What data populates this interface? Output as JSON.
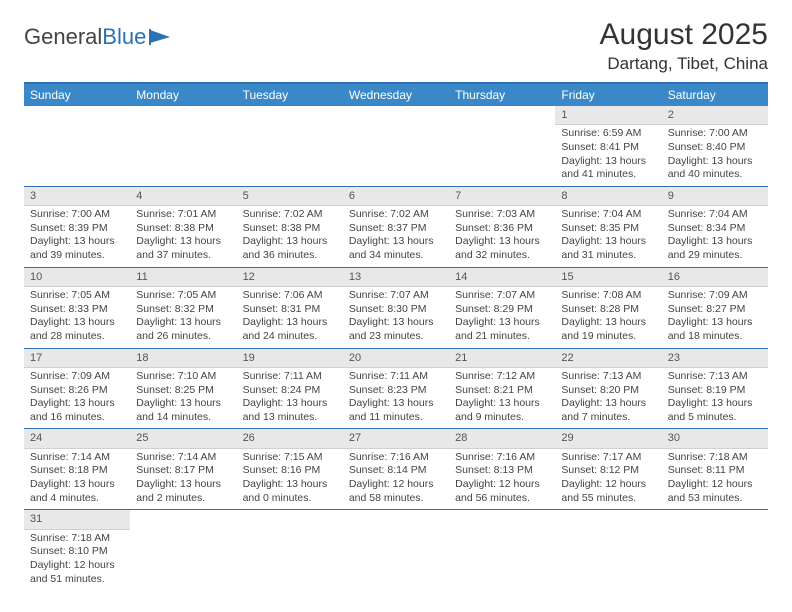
{
  "logo": {
    "text1": "General",
    "text2": "Blue"
  },
  "title": "August 2025",
  "location": "Dartang, Tibet, China",
  "colors": {
    "header_bar": "#3b88c8",
    "rule": "#2a72b5",
    "daynum_bg": "#e8e8e8",
    "text": "#444444"
  },
  "weekdays": [
    "Sunday",
    "Monday",
    "Tuesday",
    "Wednesday",
    "Thursday",
    "Friday",
    "Saturday"
  ],
  "weeks": [
    [
      null,
      null,
      null,
      null,
      null,
      {
        "n": "1",
        "sr": "Sunrise: 6:59 AM",
        "ss": "Sunset: 8:41 PM",
        "dl1": "Daylight: 13 hours",
        "dl2": "and 41 minutes."
      },
      {
        "n": "2",
        "sr": "Sunrise: 7:00 AM",
        "ss": "Sunset: 8:40 PM",
        "dl1": "Daylight: 13 hours",
        "dl2": "and 40 minutes."
      }
    ],
    [
      {
        "n": "3",
        "sr": "Sunrise: 7:00 AM",
        "ss": "Sunset: 8:39 PM",
        "dl1": "Daylight: 13 hours",
        "dl2": "and 39 minutes."
      },
      {
        "n": "4",
        "sr": "Sunrise: 7:01 AM",
        "ss": "Sunset: 8:38 PM",
        "dl1": "Daylight: 13 hours",
        "dl2": "and 37 minutes."
      },
      {
        "n": "5",
        "sr": "Sunrise: 7:02 AM",
        "ss": "Sunset: 8:38 PM",
        "dl1": "Daylight: 13 hours",
        "dl2": "and 36 minutes."
      },
      {
        "n": "6",
        "sr": "Sunrise: 7:02 AM",
        "ss": "Sunset: 8:37 PM",
        "dl1": "Daylight: 13 hours",
        "dl2": "and 34 minutes."
      },
      {
        "n": "7",
        "sr": "Sunrise: 7:03 AM",
        "ss": "Sunset: 8:36 PM",
        "dl1": "Daylight: 13 hours",
        "dl2": "and 32 minutes."
      },
      {
        "n": "8",
        "sr": "Sunrise: 7:04 AM",
        "ss": "Sunset: 8:35 PM",
        "dl1": "Daylight: 13 hours",
        "dl2": "and 31 minutes."
      },
      {
        "n": "9",
        "sr": "Sunrise: 7:04 AM",
        "ss": "Sunset: 8:34 PM",
        "dl1": "Daylight: 13 hours",
        "dl2": "and 29 minutes."
      }
    ],
    [
      {
        "n": "10",
        "sr": "Sunrise: 7:05 AM",
        "ss": "Sunset: 8:33 PM",
        "dl1": "Daylight: 13 hours",
        "dl2": "and 28 minutes."
      },
      {
        "n": "11",
        "sr": "Sunrise: 7:05 AM",
        "ss": "Sunset: 8:32 PM",
        "dl1": "Daylight: 13 hours",
        "dl2": "and 26 minutes."
      },
      {
        "n": "12",
        "sr": "Sunrise: 7:06 AM",
        "ss": "Sunset: 8:31 PM",
        "dl1": "Daylight: 13 hours",
        "dl2": "and 24 minutes."
      },
      {
        "n": "13",
        "sr": "Sunrise: 7:07 AM",
        "ss": "Sunset: 8:30 PM",
        "dl1": "Daylight: 13 hours",
        "dl2": "and 23 minutes."
      },
      {
        "n": "14",
        "sr": "Sunrise: 7:07 AM",
        "ss": "Sunset: 8:29 PM",
        "dl1": "Daylight: 13 hours",
        "dl2": "and 21 minutes."
      },
      {
        "n": "15",
        "sr": "Sunrise: 7:08 AM",
        "ss": "Sunset: 8:28 PM",
        "dl1": "Daylight: 13 hours",
        "dl2": "and 19 minutes."
      },
      {
        "n": "16",
        "sr": "Sunrise: 7:09 AM",
        "ss": "Sunset: 8:27 PM",
        "dl1": "Daylight: 13 hours",
        "dl2": "and 18 minutes."
      }
    ],
    [
      {
        "n": "17",
        "sr": "Sunrise: 7:09 AM",
        "ss": "Sunset: 8:26 PM",
        "dl1": "Daylight: 13 hours",
        "dl2": "and 16 minutes."
      },
      {
        "n": "18",
        "sr": "Sunrise: 7:10 AM",
        "ss": "Sunset: 8:25 PM",
        "dl1": "Daylight: 13 hours",
        "dl2": "and 14 minutes."
      },
      {
        "n": "19",
        "sr": "Sunrise: 7:11 AM",
        "ss": "Sunset: 8:24 PM",
        "dl1": "Daylight: 13 hours",
        "dl2": "and 13 minutes."
      },
      {
        "n": "20",
        "sr": "Sunrise: 7:11 AM",
        "ss": "Sunset: 8:23 PM",
        "dl1": "Daylight: 13 hours",
        "dl2": "and 11 minutes."
      },
      {
        "n": "21",
        "sr": "Sunrise: 7:12 AM",
        "ss": "Sunset: 8:21 PM",
        "dl1": "Daylight: 13 hours",
        "dl2": "and 9 minutes."
      },
      {
        "n": "22",
        "sr": "Sunrise: 7:13 AM",
        "ss": "Sunset: 8:20 PM",
        "dl1": "Daylight: 13 hours",
        "dl2": "and 7 minutes."
      },
      {
        "n": "23",
        "sr": "Sunrise: 7:13 AM",
        "ss": "Sunset: 8:19 PM",
        "dl1": "Daylight: 13 hours",
        "dl2": "and 5 minutes."
      }
    ],
    [
      {
        "n": "24",
        "sr": "Sunrise: 7:14 AM",
        "ss": "Sunset: 8:18 PM",
        "dl1": "Daylight: 13 hours",
        "dl2": "and 4 minutes."
      },
      {
        "n": "25",
        "sr": "Sunrise: 7:14 AM",
        "ss": "Sunset: 8:17 PM",
        "dl1": "Daylight: 13 hours",
        "dl2": "and 2 minutes."
      },
      {
        "n": "26",
        "sr": "Sunrise: 7:15 AM",
        "ss": "Sunset: 8:16 PM",
        "dl1": "Daylight: 13 hours",
        "dl2": "and 0 minutes."
      },
      {
        "n": "27",
        "sr": "Sunrise: 7:16 AM",
        "ss": "Sunset: 8:14 PM",
        "dl1": "Daylight: 12 hours",
        "dl2": "and 58 minutes."
      },
      {
        "n": "28",
        "sr": "Sunrise: 7:16 AM",
        "ss": "Sunset: 8:13 PM",
        "dl1": "Daylight: 12 hours",
        "dl2": "and 56 minutes."
      },
      {
        "n": "29",
        "sr": "Sunrise: 7:17 AM",
        "ss": "Sunset: 8:12 PM",
        "dl1": "Daylight: 12 hours",
        "dl2": "and 55 minutes."
      },
      {
        "n": "30",
        "sr": "Sunrise: 7:18 AM",
        "ss": "Sunset: 8:11 PM",
        "dl1": "Daylight: 12 hours",
        "dl2": "and 53 minutes."
      }
    ],
    [
      {
        "n": "31",
        "sr": "Sunrise: 7:18 AM",
        "ss": "Sunset: 8:10 PM",
        "dl1": "Daylight: 12 hours",
        "dl2": "and 51 minutes."
      },
      null,
      null,
      null,
      null,
      null,
      null
    ]
  ]
}
